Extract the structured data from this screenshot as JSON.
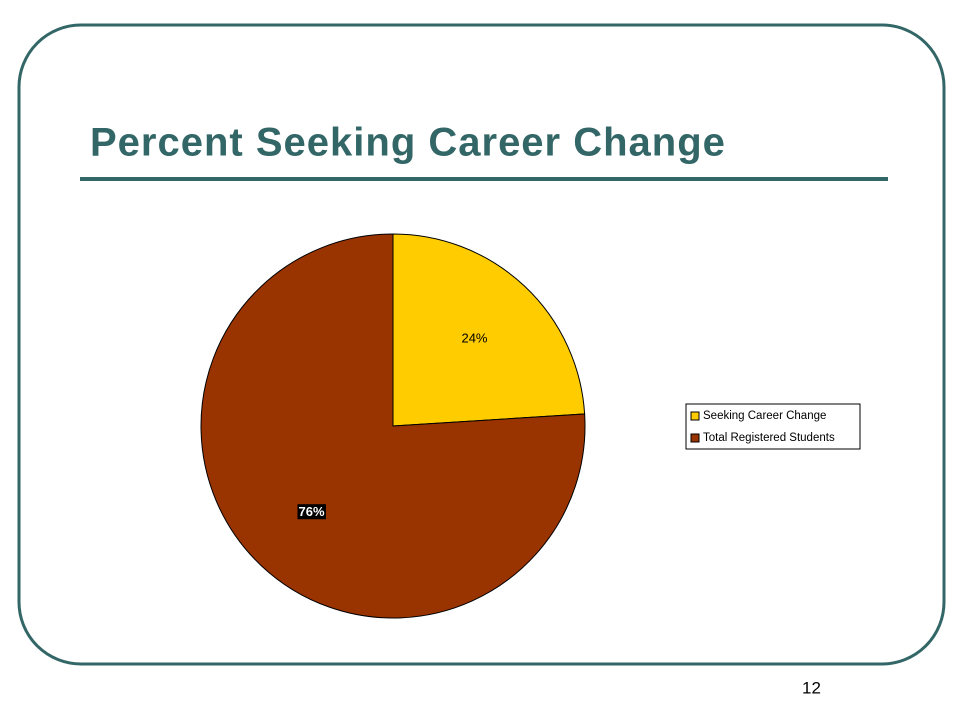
{
  "chart_data": {
    "type": "pie",
    "title": "Percent Seeking Career Change",
    "categories": [
      "Seeking Career Change",
      "Total Registered Students"
    ],
    "values": [
      24,
      76
    ],
    "value_labels": [
      "24%",
      "76%"
    ],
    "colors": [
      "#ffcc00",
      "#993300"
    ],
    "legend": "right"
  },
  "page_number": "12"
}
